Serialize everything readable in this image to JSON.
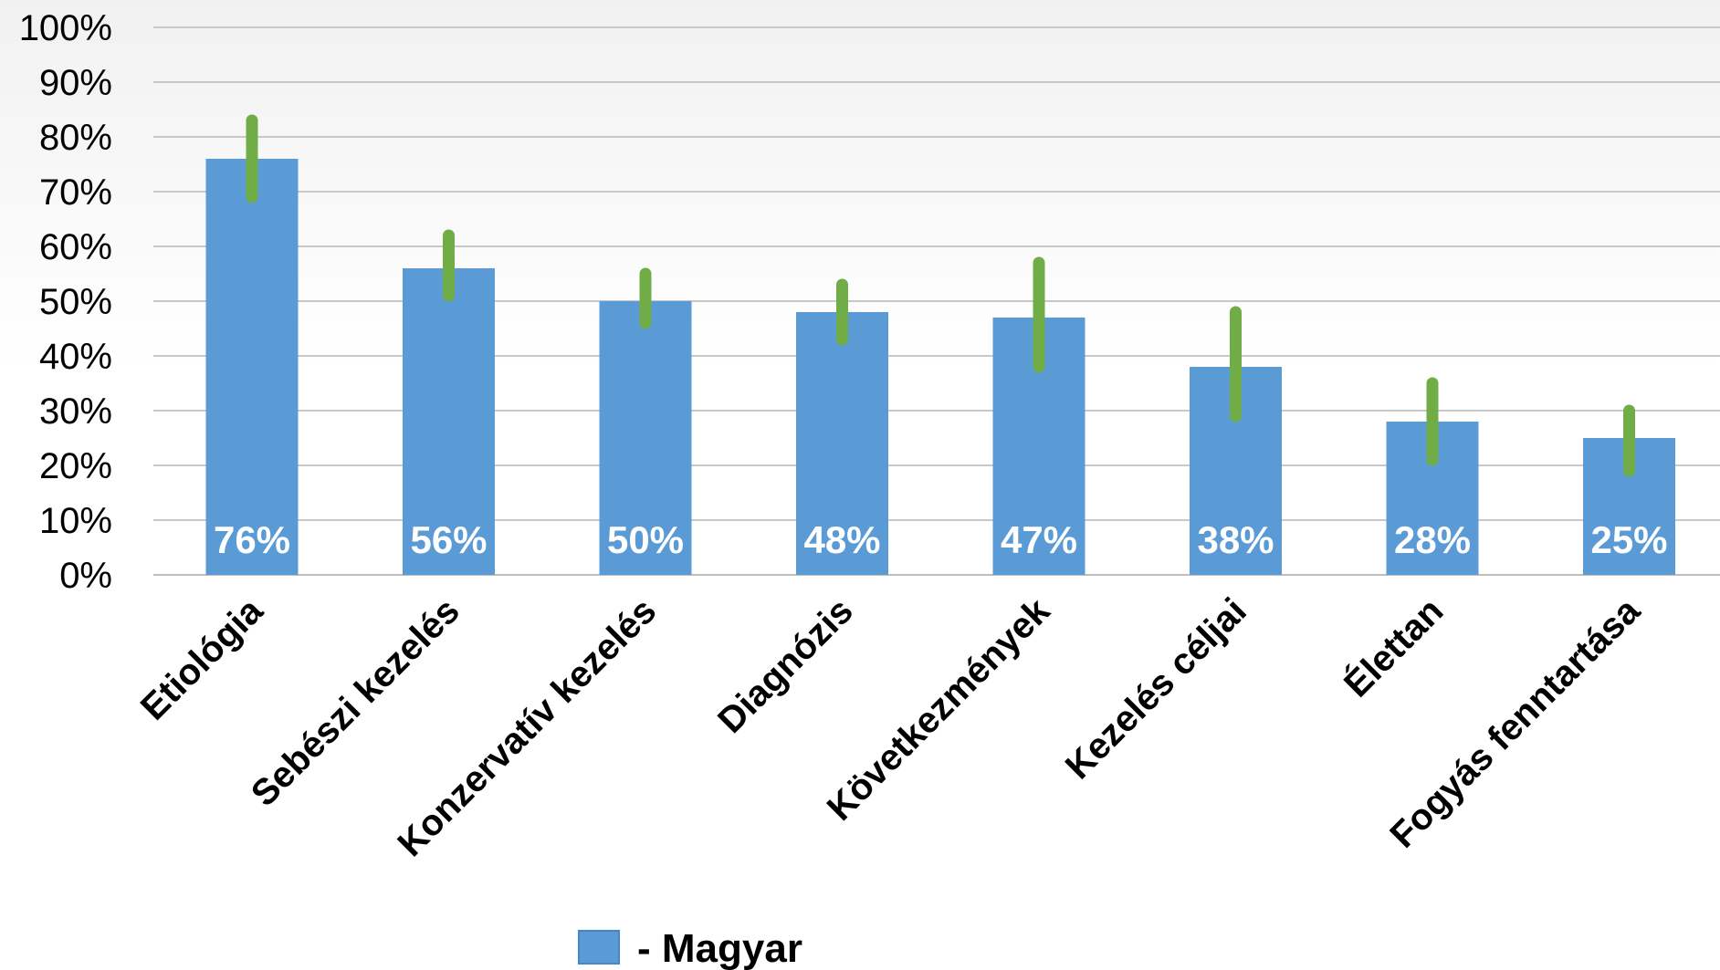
{
  "chart_data": {
    "type": "bar",
    "categories": [
      "Etiológia",
      "Sebészi kezelés",
      "Konzervatív kezelés",
      "Diagnózis",
      "Következmények",
      "Kezelés céljai",
      "Élettan",
      "Fogyás fenntartása"
    ],
    "series": [
      {
        "name": "- Magyar",
        "color": "#5b9bd5",
        "values": [
          76,
          56,
          50,
          48,
          47,
          38,
          28,
          25
        ],
        "data_labels": [
          "76%",
          "56%",
          "50%",
          "48%",
          "47%",
          "38%",
          "28%",
          "25%"
        ],
        "error_low": [
          69,
          51,
          46,
          43,
          38,
          29,
          21,
          19
        ],
        "error_high": [
          83,
          62,
          55,
          53,
          57,
          48,
          35,
          30
        ]
      }
    ],
    "error_bar_color": "#70ad47",
    "ylim": [
      0,
      100
    ],
    "yticks": [
      0,
      10,
      20,
      30,
      40,
      50,
      60,
      70,
      80,
      90,
      100
    ],
    "ytick_labels": [
      "0%",
      "10%",
      "20%",
      "30%",
      "40%",
      "50%",
      "60%",
      "70%",
      "80%",
      "90%",
      "100%"
    ],
    "grid": true,
    "legend": {
      "position": "bottom",
      "label": "- Magyar"
    },
    "title": "",
    "xlabel": "",
    "ylabel": ""
  }
}
